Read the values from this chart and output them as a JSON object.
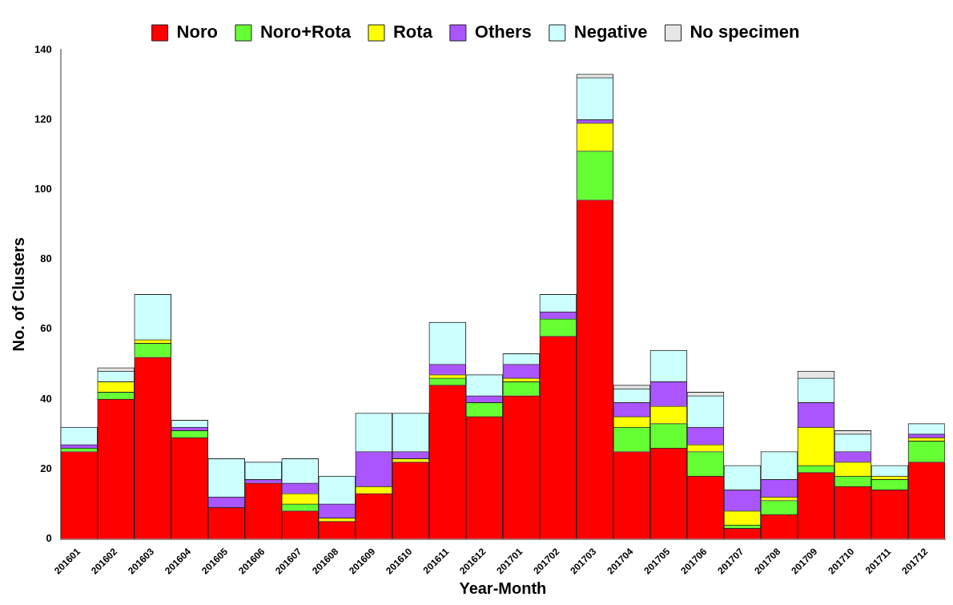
{
  "chart_data": {
    "type": "bar",
    "stacked": true,
    "xlabel": "Year-Month",
    "ylabel": "No. of Clusters",
    "categories": [
      "201601",
      "201602",
      "201603",
      "201604",
      "201605",
      "201606",
      "201607",
      "201608",
      "201609",
      "201610",
      "201611",
      "201612",
      "201701",
      "201702",
      "201703",
      "201704",
      "201705",
      "201706",
      "201707",
      "201708",
      "201709",
      "201710",
      "201711",
      "201712"
    ],
    "series": [
      {
        "name": "Noro",
        "color": "#ff0000",
        "values": [
          25,
          40,
          52,
          29,
          9,
          16,
          8,
          5,
          13,
          22,
          44,
          35,
          41,
          58,
          97,
          25,
          26,
          18,
          3,
          7,
          19,
          15,
          14,
          22
        ]
      },
      {
        "name": "Noro+Rota",
        "color": "#66ff33",
        "values": [
          1,
          2,
          4,
          2,
          0,
          0,
          2,
          0,
          0,
          0,
          2,
          4,
          4,
          5,
          14,
          7,
          7,
          7,
          1,
          4,
          2,
          3,
          3,
          6
        ]
      },
      {
        "name": "Rota",
        "color": "#ffff00",
        "values": [
          0,
          3,
          1,
          0,
          0,
          0,
          3,
          1,
          2,
          1,
          1,
          0,
          1,
          0,
          8,
          3,
          5,
          2,
          4,
          1,
          11,
          4,
          1,
          1
        ]
      },
      {
        "name": "Others",
        "color": "#aa55ff",
        "values": [
          1,
          0,
          0,
          1,
          3,
          1,
          3,
          4,
          10,
          2,
          3,
          2,
          4,
          2,
          1,
          4,
          7,
          5,
          6,
          5,
          7,
          3,
          0,
          1
        ]
      },
      {
        "name": "Negative",
        "color": "#ccffff",
        "values": [
          5,
          3,
          13,
          2,
          11,
          5,
          7,
          8,
          11,
          11,
          12,
          6,
          3,
          5,
          12,
          4,
          9,
          9,
          7,
          8,
          7,
          5,
          3,
          3
        ]
      },
      {
        "name": "No specimen",
        "color": "#e6e6e6",
        "values": [
          0,
          1,
          0,
          0,
          0,
          0,
          0,
          0,
          0,
          0,
          0,
          0,
          0,
          0,
          1,
          1,
          0,
          1,
          0,
          0,
          2,
          1,
          0,
          0
        ]
      }
    ],
    "ylim": [
      0,
      140
    ],
    "yticks": [
      0,
      20,
      40,
      60,
      80,
      100,
      120,
      140
    ],
    "legend": "top"
  }
}
